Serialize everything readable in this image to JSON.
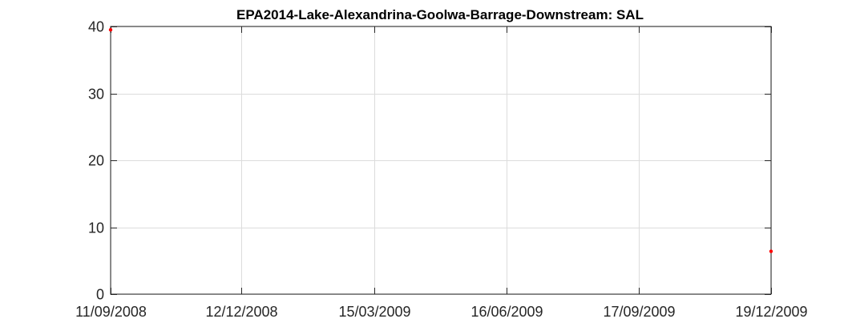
{
  "chart_data": {
    "type": "scatter",
    "title": "EPA2014-Lake-Alexandrina-Goolwa-Barrage-Downstream: SAL",
    "xlabel": "",
    "ylabel": "",
    "x_axis_type": "date",
    "date_format": "DD/MM/YYYY",
    "xlim": [
      "11/09/2008",
      "19/12/2009"
    ],
    "ylim": [
      0,
      40
    ],
    "x_ticks": [
      "11/09/2008",
      "12/12/2008",
      "15/03/2009",
      "16/06/2009",
      "17/09/2009",
      "19/12/2009"
    ],
    "y_ticks": [
      0,
      10,
      20,
      30,
      40
    ],
    "grid": true,
    "series": [
      {
        "color": "#ff0000",
        "marker": "dot",
        "points": [
          {
            "x": "11/09/2008",
            "y": 39.5
          },
          {
            "x": "19/12/2009",
            "y": 6.4
          }
        ]
      }
    ]
  },
  "colors": {
    "background": "#ffffff",
    "axes": "#262626",
    "grid": "#dcdcdc",
    "series": "#ff0000"
  }
}
